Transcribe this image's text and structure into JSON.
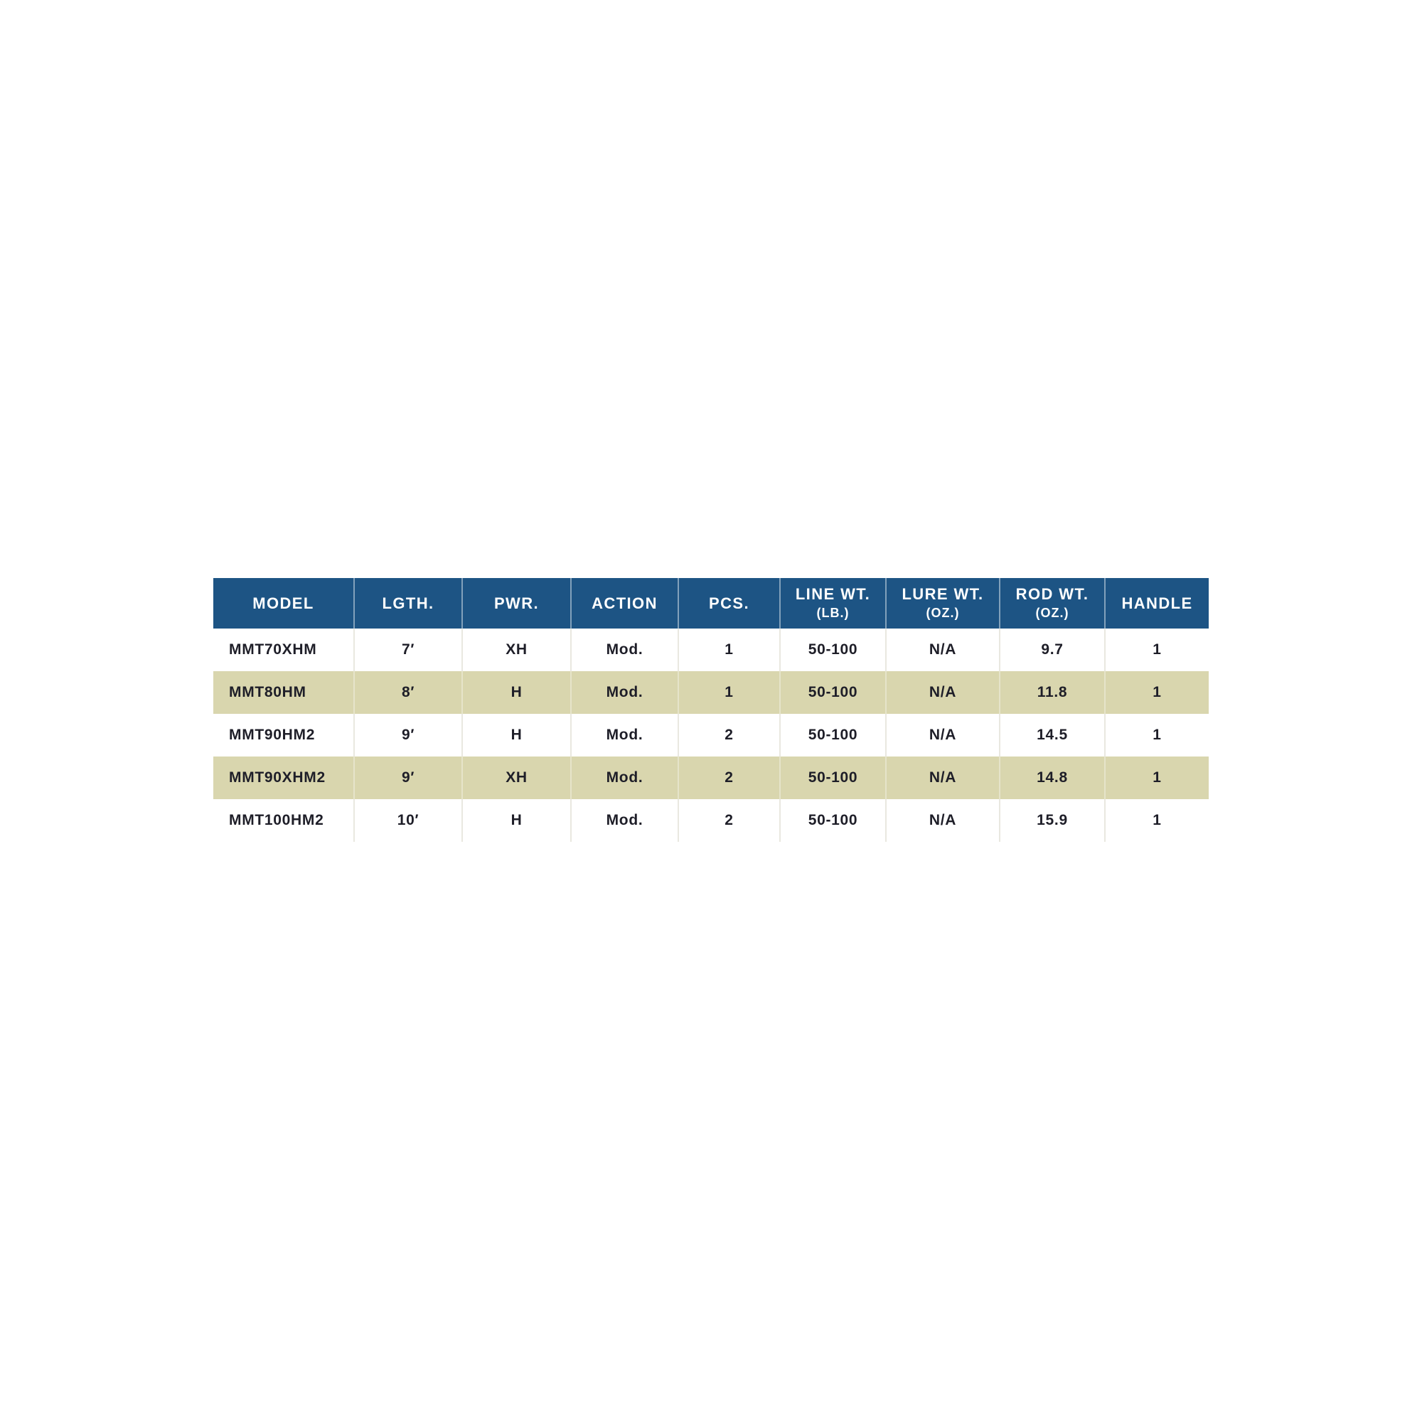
{
  "colors": {
    "header_bg": "#1d5484",
    "header_text": "#ffffff",
    "header_divider": "rgba(255,255,255,0.45)",
    "body_text": "#1e1e28",
    "row_bg": "#ffffff",
    "row_highlight_bg": "#d9d6ae",
    "cell_divider": "#e9e8e0",
    "page_bg": "#ffffff"
  },
  "table": {
    "columns": [
      {
        "label": "MODEL",
        "sub": ""
      },
      {
        "label": "LGTH.",
        "sub": ""
      },
      {
        "label": "PWR.",
        "sub": ""
      },
      {
        "label": "ACTION",
        "sub": ""
      },
      {
        "label": "PCS.",
        "sub": ""
      },
      {
        "label": "LINE WT.",
        "sub": "(LB.)"
      },
      {
        "label": "LURE WT.",
        "sub": "(OZ.)"
      },
      {
        "label": "ROD WT.",
        "sub": "(OZ.)"
      },
      {
        "label": "HANDLE",
        "sub": ""
      }
    ],
    "rows": [
      {
        "model": "MMT70XHM",
        "lgth": "7′",
        "pwr": "XH",
        "action": "Mod.",
        "pcs": "1",
        "line_wt": "50-100",
        "lure_wt": "N/A",
        "rod_wt": "9.7",
        "handle": "1",
        "highlighted": false
      },
      {
        "model": "MMT80HM",
        "lgth": "8′",
        "pwr": "H",
        "action": "Mod.",
        "pcs": "1",
        "line_wt": "50-100",
        "lure_wt": "N/A",
        "rod_wt": "11.8",
        "handle": "1",
        "highlighted": true
      },
      {
        "model": "MMT90HM2",
        "lgth": "9′",
        "pwr": "H",
        "action": "Mod.",
        "pcs": "2",
        "line_wt": "50-100",
        "lure_wt": "N/A",
        "rod_wt": "14.5",
        "handle": "1",
        "highlighted": false
      },
      {
        "model": "MMT90XHM2",
        "lgth": "9′",
        "pwr": "XH",
        "action": "Mod.",
        "pcs": "2",
        "line_wt": "50-100",
        "lure_wt": "N/A",
        "rod_wt": "14.8",
        "handle": "1",
        "highlighted": true
      },
      {
        "model": "MMT100HM2",
        "lgth": "10′",
        "pwr": "H",
        "action": "Mod.",
        "pcs": "2",
        "line_wt": "50-100",
        "lure_wt": "N/A",
        "rod_wt": "15.9",
        "handle": "1",
        "highlighted": false
      }
    ]
  },
  "chart_data": {
    "type": "table",
    "title": "",
    "columns": [
      "MODEL",
      "LGTH.",
      "PWR.",
      "ACTION",
      "PCS.",
      "LINE WT. (LB.)",
      "LURE WT. (OZ.)",
      "ROD WT. (OZ.)",
      "HANDLE"
    ],
    "rows": [
      [
        "MMT70XHM",
        "7′",
        "XH",
        "Mod.",
        "1",
        "50-100",
        "N/A",
        "9.7",
        "1"
      ],
      [
        "MMT80HM",
        "8′",
        "H",
        "Mod.",
        "1",
        "50-100",
        "N/A",
        "11.8",
        "1"
      ],
      [
        "MMT90HM2",
        "9′",
        "H",
        "Mod.",
        "2",
        "50-100",
        "N/A",
        "14.5",
        "1"
      ],
      [
        "MMT90XHM2",
        "9′",
        "XH",
        "Mod.",
        "2",
        "50-100",
        "N/A",
        "14.8",
        "1"
      ],
      [
        "MMT100HM2",
        "10′",
        "H",
        "Mod.",
        "2",
        "50-100",
        "N/A",
        "15.9",
        "1"
      ]
    ],
    "highlighted_row_indices": [
      1,
      3
    ],
    "layout_hints": {
      "header_style": "dark-blue band, white uppercase text",
      "zebra": "rows 2 and 4 beige"
    }
  }
}
